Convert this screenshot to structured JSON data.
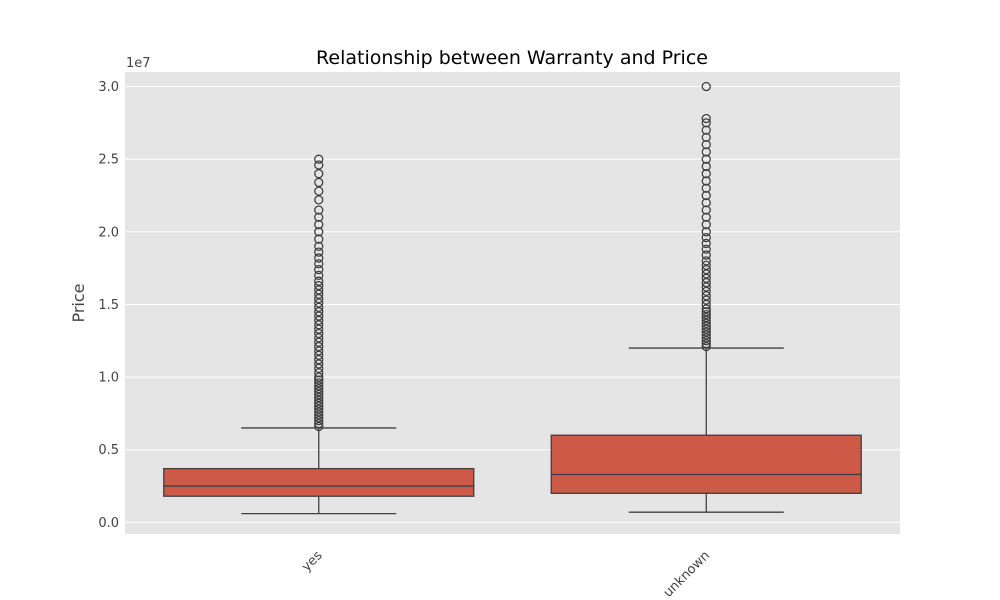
{
  "chart_data": {
    "type": "box",
    "title": "Relationship between Warranty and Price",
    "xlabel": "",
    "ylabel": "Price",
    "y_offset_label": "1e7",
    "ylim": [
      -0.08,
      3.1
    ],
    "yticks": [
      0.0,
      0.5,
      1.0,
      1.5,
      2.0,
      2.5,
      3.0
    ],
    "ytick_labels": [
      "0.0",
      "0.5",
      "1.0",
      "1.5",
      "2.0",
      "2.5",
      "3.0"
    ],
    "grid": true,
    "categories": [
      "yes",
      "unknown"
    ],
    "colors": {
      "plot_background": "#e5e5e5",
      "grid": "#ffffff",
      "box_fill": "#cd5a47",
      "line": "#404040"
    },
    "boxes": [
      {
        "category": "yes",
        "whisker_low": 0.06,
        "q1": 0.18,
        "median": 0.25,
        "q3": 0.37,
        "whisker_high": 0.65,
        "outliers": [
          0.66,
          0.68,
          0.7,
          0.72,
          0.74,
          0.76,
          0.78,
          0.8,
          0.82,
          0.84,
          0.86,
          0.88,
          0.9,
          0.92,
          0.94,
          0.96,
          0.98,
          1.0,
          1.03,
          1.06,
          1.09,
          1.12,
          1.15,
          1.18,
          1.21,
          1.24,
          1.27,
          1.3,
          1.33,
          1.36,
          1.39,
          1.42,
          1.45,
          1.48,
          1.51,
          1.54,
          1.57,
          1.6,
          1.63,
          1.66,
          1.7,
          1.74,
          1.78,
          1.82,
          1.86,
          1.9,
          1.95,
          2.0,
          2.05,
          2.1,
          2.15,
          2.22,
          2.28,
          2.34,
          2.4,
          2.46,
          2.5
        ]
      },
      {
        "category": "unknown",
        "whisker_low": 0.07,
        "q1": 0.2,
        "median": 0.33,
        "q3": 0.6,
        "whisker_high": 1.2,
        "outliers": [
          1.21,
          1.23,
          1.25,
          1.27,
          1.29,
          1.31,
          1.33,
          1.35,
          1.37,
          1.39,
          1.41,
          1.43,
          1.45,
          1.47,
          1.5,
          1.53,
          1.56,
          1.59,
          1.62,
          1.65,
          1.68,
          1.71,
          1.74,
          1.77,
          1.8,
          1.84,
          1.88,
          1.92,
          1.96,
          2.0,
          2.05,
          2.1,
          2.15,
          2.2,
          2.25,
          2.3,
          2.35,
          2.4,
          2.45,
          2.5,
          2.55,
          2.6,
          2.65,
          2.7,
          2.75,
          2.78,
          3.0
        ]
      }
    ]
  }
}
